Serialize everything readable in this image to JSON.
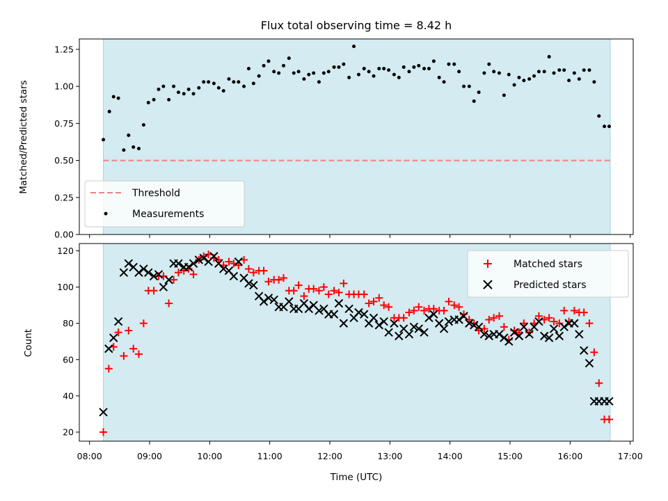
{
  "chart_data": {
    "title": "Flux total observing time = 8.42 h",
    "colors": {
      "band": "#d3ebf1",
      "band_edge": "#a9d2de",
      "threshold": "#f08080",
      "matched": "#ff0000",
      "predicted": "#000000",
      "measurement": "#000000"
    },
    "x_ticks": [
      "08:00",
      "09:00",
      "10:00",
      "11:00",
      "12:00",
      "13:00",
      "14:00",
      "15:00",
      "16:00",
      "17:00"
    ],
    "xlabel": "Time (UTC)",
    "xlim_hours": [
      7.83,
      17.05
    ],
    "observing_window_hours": [
      8.23,
      16.65
    ],
    "panels": [
      {
        "type": "scatter",
        "ylabel": "Matched/Predicted stars",
        "ylim": [
          0,
          1.32
        ],
        "y_ticks": [
          "0.00",
          "0.25",
          "0.50",
          "0.75",
          "1.00",
          "1.25"
        ],
        "threshold": {
          "label": "Threshold",
          "value": 0.5
        },
        "legend": {
          "placement": "lower-left",
          "entries": [
            "Threshold",
            "Measurements"
          ]
        },
        "series": [
          {
            "name": "Measurements",
            "x": [
              8.23,
              8.33,
              8.4,
              8.48,
              8.57,
              8.65,
              8.73,
              8.82,
              8.9,
              8.98,
              9.07,
              9.15,
              9.23,
              9.32,
              9.4,
              9.48,
              9.57,
              9.65,
              9.73,
              9.82,
              9.9,
              9.98,
              10.07,
              10.15,
              10.23,
              10.32,
              10.4,
              10.48,
              10.57,
              10.65,
              10.73,
              10.82,
              10.9,
              10.98,
              11.07,
              11.15,
              11.23,
              11.32,
              11.4,
              11.48,
              11.57,
              11.65,
              11.73,
              11.82,
              11.9,
              11.98,
              12.07,
              12.15,
              12.23,
              12.32,
              12.4,
              12.48,
              12.57,
              12.65,
              12.73,
              12.82,
              12.9,
              12.98,
              13.07,
              13.15,
              13.23,
              13.32,
              13.4,
              13.48,
              13.57,
              13.65,
              13.73,
              13.82,
              13.9,
              13.98,
              14.07,
              14.15,
              14.23,
              14.32,
              14.4,
              14.48,
              14.57,
              14.65,
              14.73,
              14.82,
              14.9,
              14.98,
              15.07,
              15.15,
              15.23,
              15.32,
              15.4,
              15.48,
              15.57,
              15.65,
              15.73,
              15.82,
              15.9,
              15.98,
              16.07,
              16.15,
              16.23,
              16.32,
              16.4,
              16.48,
              16.57,
              16.65
            ],
            "y": [
              0.64,
              0.83,
              0.93,
              0.92,
              0.57,
              0.67,
              0.59,
              0.58,
              0.74,
              0.89,
              0.91,
              0.98,
              1.0,
              0.91,
              1.0,
              0.96,
              0.95,
              0.98,
              0.95,
              0.99,
              1.03,
              1.03,
              1.02,
              0.99,
              0.97,
              1.05,
              1.03,
              1.03,
              1.0,
              1.12,
              1.02,
              1.07,
              1.14,
              1.17,
              1.1,
              1.09,
              1.14,
              1.19,
              1.09,
              1.1,
              1.05,
              1.08,
              1.09,
              1.03,
              1.09,
              1.1,
              1.13,
              1.13,
              1.15,
              1.06,
              1.27,
              1.08,
              1.12,
              1.1,
              1.07,
              1.12,
              1.12,
              1.11,
              1.08,
              1.06,
              1.13,
              1.1,
              1.13,
              1.14,
              1.12,
              1.12,
              1.17,
              1.06,
              1.03,
              1.15,
              1.15,
              1.1,
              1.0,
              1.0,
              0.9,
              0.96,
              1.09,
              1.15,
              1.1,
              1.09,
              0.94,
              1.08,
              1.01,
              1.06,
              1.04,
              1.05,
              1.07,
              1.1,
              1.1,
              1.2,
              1.09,
              1.11,
              1.11,
              1.04,
              1.09,
              1.05,
              1.11,
              1.11,
              1.03,
              0.8,
              0.73,
              0.73
            ]
          }
        ]
      },
      {
        "type": "scatter",
        "ylabel": "Count",
        "ylim": [
          15,
          124
        ],
        "y_ticks": [
          "20",
          "40",
          "60",
          "80",
          "100",
          "120"
        ],
        "legend": {
          "placement": "top-right",
          "entries": [
            "Matched stars",
            "Predicted stars"
          ]
        },
        "series": [
          {
            "name": "Matched stars",
            "marker": "plus",
            "x": [
              8.23,
              8.32,
              8.4,
              8.48,
              8.57,
              8.65,
              8.73,
              8.82,
              8.9,
              8.98,
              9.07,
              9.15,
              9.23,
              9.32,
              9.4,
              9.48,
              9.57,
              9.65,
              9.73,
              9.82,
              9.9,
              9.98,
              10.07,
              10.15,
              10.23,
              10.32,
              10.4,
              10.48,
              10.57,
              10.65,
              10.73,
              10.82,
              10.9,
              10.98,
              11.07,
              11.15,
              11.23,
              11.32,
              11.4,
              11.48,
              11.57,
              11.65,
              11.73,
              11.82,
              11.9,
              11.98,
              12.07,
              12.15,
              12.23,
              12.32,
              12.4,
              12.48,
              12.57,
              12.65,
              12.73,
              12.82,
              12.9,
              12.98,
              13.07,
              13.15,
              13.23,
              13.32,
              13.4,
              13.48,
              13.57,
              13.65,
              13.73,
              13.82,
              13.9,
              13.98,
              14.07,
              14.15,
              14.23,
              14.32,
              14.4,
              14.48,
              14.57,
              14.65,
              14.73,
              14.82,
              14.9,
              14.98,
              15.07,
              15.15,
              15.23,
              15.32,
              15.4,
              15.48,
              15.57,
              15.65,
              15.73,
              15.82,
              15.9,
              15.98,
              16.07,
              16.15,
              16.23,
              16.32,
              16.4,
              16.48,
              16.57,
              16.65
            ],
            "y": [
              20,
              55,
              67,
              75,
              62,
              76,
              66,
              63,
              80,
              98,
              98,
              106,
              106,
              91,
              104,
              108,
              109,
              110,
              107,
              115,
              117,
              118,
              116,
              115,
              112,
              114,
              113,
              112,
              115,
              110,
              108,
              109,
              109,
              103,
              104,
              104,
              105,
              98,
              98,
              101,
              95,
              99,
              99,
              98,
              100,
              96,
              98,
              97,
              102,
              96,
              96,
              96,
              96,
              91,
              92,
              94,
              90,
              89,
              83,
              83,
              83,
              86,
              87,
              89,
              87,
              88,
              88,
              87,
              87,
              92,
              90,
              89,
              85,
              82,
              80,
              76,
              77,
              82,
              83,
              84,
              78,
              71,
              76,
              75,
              80,
              75,
              80,
              84,
              82,
              83,
              81,
              80,
              87,
              81,
              87,
              86,
              86,
              80,
              64,
              47,
              27,
              27
            ]
          },
          {
            "name": "Predicted stars",
            "marker": "x",
            "x": [
              8.23,
              8.32,
              8.4,
              8.48,
              8.57,
              8.65,
              8.73,
              8.82,
              8.9,
              8.98,
              9.07,
              9.15,
              9.23,
              9.32,
              9.4,
              9.48,
              9.57,
              9.65,
              9.73,
              9.82,
              9.9,
              9.98,
              10.07,
              10.15,
              10.23,
              10.32,
              10.4,
              10.48,
              10.57,
              10.65,
              10.73,
              10.82,
              10.9,
              10.98,
              11.07,
              11.15,
              11.23,
              11.32,
              11.4,
              11.48,
              11.57,
              11.65,
              11.73,
              11.82,
              11.9,
              11.98,
              12.07,
              12.15,
              12.23,
              12.32,
              12.4,
              12.48,
              12.57,
              12.65,
              12.73,
              12.82,
              12.9,
              12.98,
              13.07,
              13.15,
              13.23,
              13.32,
              13.4,
              13.48,
              13.57,
              13.65,
              13.73,
              13.82,
              13.9,
              13.98,
              14.07,
              14.15,
              14.23,
              14.32,
              14.4,
              14.48,
              14.57,
              14.65,
              14.73,
              14.82,
              14.9,
              14.98,
              15.07,
              15.15,
              15.23,
              15.32,
              15.4,
              15.48,
              15.57,
              15.65,
              15.73,
              15.82,
              15.9,
              15.98,
              16.07,
              16.15,
              16.23,
              16.32,
              16.4,
              16.48,
              16.57,
              16.65
            ],
            "y": [
              31,
              66,
              72,
              81,
              108,
              113,
              111,
              108,
              110,
              108,
              106,
              107,
              100,
              104,
              113,
              113,
              111,
              111,
              113,
              115,
              116,
              114,
              117,
              113,
              110,
              109,
              106,
              114,
              105,
              102,
              101,
              95,
              92,
              94,
              93,
              89,
              89,
              92,
              88,
              88,
              91,
              88,
              90,
              87,
              88,
              85,
              85,
              91,
              80,
              88,
              83,
              86,
              85,
              80,
              83,
              79,
              81,
              75,
              80,
              73,
              77,
              74,
              78,
              77,
              75,
              83,
              85,
              80,
              77,
              81,
              82,
              82,
              84,
              80,
              79,
              78,
              74,
              73,
              74,
              74,
              72,
              70,
              75,
              73,
              78,
              74,
              78,
              81,
              73,
              72,
              77,
              73,
              78,
              80,
              80,
              74,
              65,
              58,
              37,
              37,
              37,
              37
            ]
          }
        ]
      }
    ]
  }
}
